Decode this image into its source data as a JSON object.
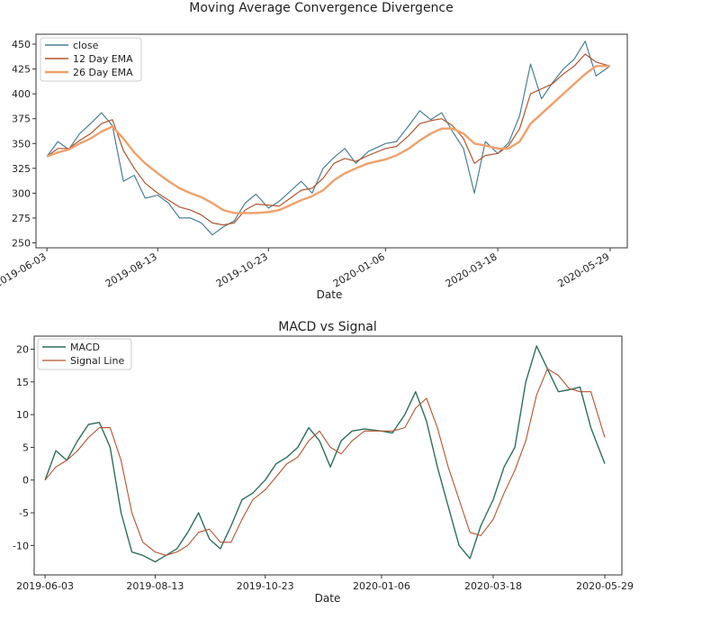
{
  "chart_data": [
    {
      "type": "line",
      "title": "Moving Average Convergence Divergence",
      "xlabel": "Date",
      "ylabel": "",
      "xlim": [
        "2019-05-27",
        "2020-06-09"
      ],
      "ylim": [
        245,
        460
      ],
      "x_ticks": [
        "2019-06-03",
        "2019-08-13",
        "2019-10-23",
        "2020-01-06",
        "2020-03-18",
        "2020-05-29"
      ],
      "y_ticks": [
        250,
        275,
        300,
        325,
        350,
        375,
        400,
        425,
        450
      ],
      "legend_position": "upper-left",
      "series": [
        {
          "name": "close",
          "color": "#4a7f96",
          "width": 1.2,
          "x": [
            "2019-06-03",
            "2019-06-10",
            "2019-06-17",
            "2019-06-24",
            "2019-07-01",
            "2019-07-08",
            "2019-07-15",
            "2019-07-22",
            "2019-07-29",
            "2019-08-05",
            "2019-08-13",
            "2019-08-20",
            "2019-08-27",
            "2019-09-03",
            "2019-09-10",
            "2019-09-17",
            "2019-09-24",
            "2019-10-01",
            "2019-10-08",
            "2019-10-15",
            "2019-10-23",
            "2019-10-30",
            "2019-11-06",
            "2019-11-13",
            "2019-11-20",
            "2019-11-27",
            "2019-12-04",
            "2019-12-11",
            "2019-12-18",
            "2019-12-26",
            "2020-01-06",
            "2020-01-13",
            "2020-01-21",
            "2020-01-28",
            "2020-02-04",
            "2020-02-11",
            "2020-02-18",
            "2020-02-25",
            "2020-03-03",
            "2020-03-10",
            "2020-03-18",
            "2020-03-25",
            "2020-04-01",
            "2020-04-08",
            "2020-04-15",
            "2020-04-22",
            "2020-04-29",
            "2020-05-06",
            "2020-05-13",
            "2020-05-20",
            "2020-05-29"
          ],
          "y": [
            337,
            352,
            344,
            360,
            370,
            381,
            368,
            312,
            318,
            295,
            298,
            290,
            275,
            275,
            270,
            258,
            266,
            272,
            290,
            299,
            285,
            292,
            302,
            312,
            300,
            325,
            336,
            345,
            330,
            342,
            350,
            352,
            368,
            383,
            374,
            381,
            362,
            345,
            300,
            352,
            340,
            351,
            378,
            430,
            395,
            411,
            425,
            435,
            453,
            418,
            428
          ]
        },
        {
          "name": "12 Day EMA",
          "color": "#b3542e",
          "width": 1.2,
          "x": [
            "2019-06-03",
            "2019-06-10",
            "2019-06-17",
            "2019-06-24",
            "2019-07-01",
            "2019-07-08",
            "2019-07-15",
            "2019-07-22",
            "2019-07-29",
            "2019-08-05",
            "2019-08-13",
            "2019-08-20",
            "2019-08-27",
            "2019-09-03",
            "2019-09-10",
            "2019-09-17",
            "2019-09-24",
            "2019-10-01",
            "2019-10-08",
            "2019-10-15",
            "2019-10-23",
            "2019-10-30",
            "2019-11-06",
            "2019-11-13",
            "2019-11-20",
            "2019-11-27",
            "2019-12-04",
            "2019-12-11",
            "2019-12-18",
            "2019-12-26",
            "2020-01-06",
            "2020-01-13",
            "2020-01-21",
            "2020-01-28",
            "2020-02-04",
            "2020-02-11",
            "2020-02-18",
            "2020-02-25",
            "2020-03-03",
            "2020-03-10",
            "2020-03-18",
            "2020-03-25",
            "2020-04-01",
            "2020-04-08",
            "2020-04-15",
            "2020-04-22",
            "2020-04-29",
            "2020-05-06",
            "2020-05-13",
            "2020-05-20",
            "2020-05-29"
          ],
          "y": [
            337,
            345,
            345,
            353,
            360,
            370,
            374,
            343,
            325,
            310,
            300,
            293,
            286,
            283,
            278,
            270,
            268,
            270,
            283,
            289,
            288,
            287,
            295,
            303,
            305,
            315,
            330,
            335,
            332,
            338,
            345,
            347,
            358,
            370,
            373,
            375,
            368,
            355,
            330,
            338,
            340,
            348,
            365,
            400,
            405,
            410,
            420,
            428,
            440,
            432,
            428
          ]
        },
        {
          "name": "26 Day EMA",
          "color": "#f0a06a",
          "width": 2.4,
          "x": [
            "2019-06-03",
            "2019-06-10",
            "2019-06-17",
            "2019-06-24",
            "2019-07-01",
            "2019-07-08",
            "2019-07-15",
            "2019-07-22",
            "2019-07-29",
            "2019-08-05",
            "2019-08-13",
            "2019-08-20",
            "2019-08-27",
            "2019-09-03",
            "2019-09-10",
            "2019-09-17",
            "2019-09-24",
            "2019-10-01",
            "2019-10-08",
            "2019-10-15",
            "2019-10-23",
            "2019-10-30",
            "2019-11-06",
            "2019-11-13",
            "2019-11-20",
            "2019-11-27",
            "2019-12-04",
            "2019-12-11",
            "2019-12-18",
            "2019-12-26",
            "2020-01-06",
            "2020-01-13",
            "2020-01-21",
            "2020-01-28",
            "2020-02-04",
            "2020-02-11",
            "2020-02-18",
            "2020-02-25",
            "2020-03-03",
            "2020-03-10",
            "2020-03-18",
            "2020-03-25",
            "2020-04-01",
            "2020-04-08",
            "2020-04-15",
            "2020-04-22",
            "2020-04-29",
            "2020-05-06",
            "2020-05-13",
            "2020-05-20",
            "2020-05-29"
          ],
          "y": [
            337,
            341,
            344,
            350,
            355,
            362,
            367,
            355,
            341,
            330,
            320,
            312,
            305,
            300,
            296,
            290,
            283,
            280,
            280,
            280,
            281,
            283,
            288,
            293,
            297,
            303,
            313,
            320,
            325,
            330,
            334,
            338,
            345,
            353,
            360,
            365,
            365,
            360,
            350,
            348,
            345,
            345,
            352,
            370,
            380,
            390,
            400,
            410,
            420,
            428,
            428
          ]
        }
      ]
    },
    {
      "type": "line",
      "title": "MACD vs Signal",
      "xlabel": "Date",
      "ylabel": "",
      "xlim": [
        "2019-05-27",
        "2020-06-09"
      ],
      "ylim": [
        -14.5,
        22
      ],
      "x_ticks": [
        "2019-06-03",
        "2019-08-13",
        "2019-10-23",
        "2020-01-06",
        "2020-03-18",
        "2020-05-29"
      ],
      "y_ticks": [
        -10,
        -5,
        0,
        5,
        10,
        15,
        20
      ],
      "legend_position": "upper-left",
      "series": [
        {
          "name": "MACD",
          "color": "#2f6f5e",
          "width": 1.4,
          "x": [
            "2019-06-03",
            "2019-06-10",
            "2019-06-17",
            "2019-06-24",
            "2019-07-01",
            "2019-07-08",
            "2019-07-15",
            "2019-07-22",
            "2019-07-29",
            "2019-08-05",
            "2019-08-13",
            "2019-08-20",
            "2019-08-27",
            "2019-09-03",
            "2019-09-10",
            "2019-09-17",
            "2019-09-24",
            "2019-10-01",
            "2019-10-08",
            "2019-10-15",
            "2019-10-23",
            "2019-10-30",
            "2019-11-06",
            "2019-11-13",
            "2019-11-20",
            "2019-11-27",
            "2019-12-04",
            "2019-12-11",
            "2019-12-18",
            "2019-12-26",
            "2020-01-06",
            "2020-01-13",
            "2020-01-21",
            "2020-01-28",
            "2020-02-04",
            "2020-02-11",
            "2020-02-18",
            "2020-02-25",
            "2020-03-03",
            "2020-03-10",
            "2020-03-18",
            "2020-03-25",
            "2020-04-01",
            "2020-04-08",
            "2020-04-15",
            "2020-04-22",
            "2020-04-29",
            "2020-05-06",
            "2020-05-13",
            "2020-05-20",
            "2020-05-29"
          ],
          "y": [
            0,
            4.5,
            3,
            6,
            8.5,
            8.8,
            5,
            -5,
            -11,
            -11.5,
            -12.5,
            -11.5,
            -10.5,
            -8,
            -5,
            -9,
            -10.5,
            -7,
            -3,
            -2,
            0,
            2.5,
            3.5,
            5,
            8,
            6,
            2,
            6,
            7.5,
            7.8,
            7.5,
            7.2,
            10,
            13.5,
            9,
            2,
            -4,
            -10,
            -12,
            -7,
            -3,
            2,
            5,
            15,
            20.5,
            17,
            13.5,
            13.8,
            14.2,
            8,
            2.5
          ]
        },
        {
          "name": "Signal Line",
          "color": "#b3542e",
          "width": 1.1,
          "x": [
            "2019-06-03",
            "2019-06-10",
            "2019-06-17",
            "2019-06-24",
            "2019-07-01",
            "2019-07-08",
            "2019-07-15",
            "2019-07-22",
            "2019-07-29",
            "2019-08-05",
            "2019-08-13",
            "2019-08-20",
            "2019-08-27",
            "2019-09-03",
            "2019-09-10",
            "2019-09-17",
            "2019-09-24",
            "2019-10-01",
            "2019-10-08",
            "2019-10-15",
            "2019-10-23",
            "2019-10-30",
            "2019-11-06",
            "2019-11-13",
            "2019-11-20",
            "2019-11-27",
            "2019-12-04",
            "2019-12-11",
            "2019-12-18",
            "2019-12-26",
            "2020-01-06",
            "2020-01-13",
            "2020-01-21",
            "2020-01-28",
            "2020-02-04",
            "2020-02-11",
            "2020-02-18",
            "2020-02-25",
            "2020-03-03",
            "2020-03-10",
            "2020-03-18",
            "2020-03-25",
            "2020-04-01",
            "2020-04-08",
            "2020-04-15",
            "2020-04-22",
            "2020-04-29",
            "2020-05-06",
            "2020-05-13",
            "2020-05-20",
            "2020-05-29"
          ],
          "y": [
            0,
            2,
            3,
            4.5,
            6.5,
            8,
            8,
            3,
            -5,
            -9.5,
            -11,
            -11.5,
            -11,
            -10,
            -8,
            -7.5,
            -9.5,
            -9.5,
            -6,
            -3,
            -1.5,
            0.5,
            2.5,
            3.5,
            6,
            7.5,
            5,
            4,
            6,
            7.5,
            7.5,
            7.5,
            8,
            11,
            12.5,
            8,
            2,
            -3,
            -8,
            -8.5,
            -6,
            -2,
            1.5,
            6,
            13,
            17,
            16,
            14,
            13.5,
            13.5,
            6.5
          ]
        }
      ]
    }
  ]
}
